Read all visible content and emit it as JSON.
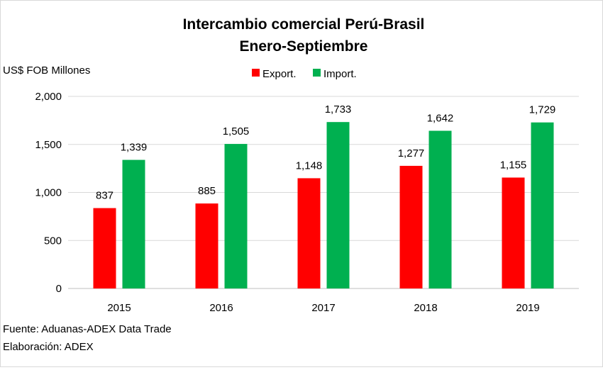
{
  "chart_data": {
    "type": "bar",
    "title": "Intercambio comercial Perú-Brasil",
    "subtitle": "Enero-Septiembre",
    "ylabel": "US$ FOB Millones",
    "categories": [
      "2015",
      "2016",
      "2017",
      "2018",
      "2019"
    ],
    "series": [
      {
        "name": "Export.",
        "color": "#ff0000",
        "values": [
          837,
          885,
          1148,
          1277,
          1155
        ],
        "labels": [
          "837",
          "885",
          "1,148",
          "1,277",
          "1,155"
        ]
      },
      {
        "name": "Import.",
        "color": "#00b050",
        "values": [
          1339,
          1505,
          1733,
          1642,
          1729
        ],
        "labels": [
          "1,339",
          "1,505",
          "1,733",
          "1,642",
          "1,729"
        ]
      }
    ],
    "ylim": [
      0,
      2000
    ],
    "yticks": [
      0,
      500,
      1000,
      1500,
      2000
    ],
    "ytick_labels": [
      "0",
      "500",
      "1,000",
      "1,500",
      "2,000"
    ],
    "grid": true,
    "legend_position": "top-center"
  },
  "footnotes": {
    "source": "Fuente: Aduanas-ADEX Data Trade",
    "elaboration": "Elaboración: ADEX"
  },
  "colors": {
    "gridline": "#d9d9d9",
    "axis": "#bfbfbf"
  }
}
